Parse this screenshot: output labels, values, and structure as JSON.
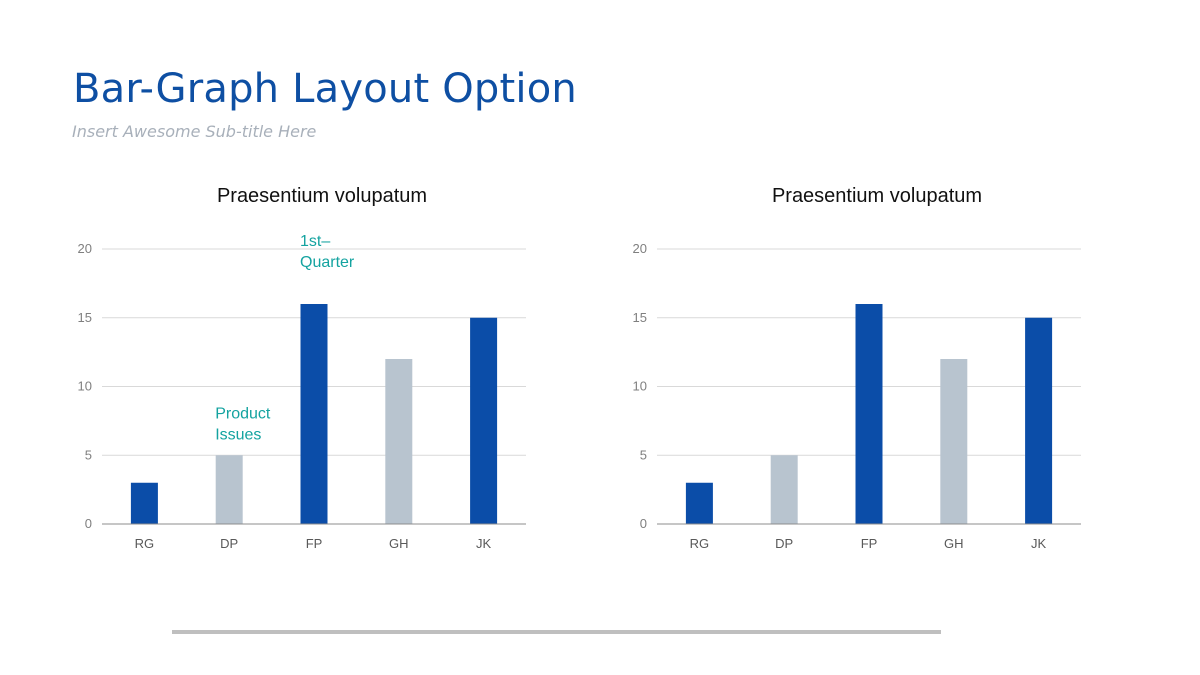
{
  "slide": {
    "title": "Bar-Graph Layout Option",
    "subtitle": "Insert Awesome Sub-title Here"
  },
  "colors": {
    "title": "#0E4FA3",
    "bar_primary": "#0B4DA8",
    "bar_secondary": "#B8C4CF",
    "annotation": "#14A3A0",
    "gridline": "#D9D9D9",
    "axis": "#8C8C8C"
  },
  "chart_data": [
    {
      "type": "bar",
      "title": "Praesentium volupatum",
      "categories": [
        "RG",
        "DP",
        "FP",
        "GH",
        "JK"
      ],
      "values": [
        3,
        5,
        16,
        12,
        15
      ],
      "bar_colors": [
        "#0B4DA8",
        "#B8C4CF",
        "#0B4DA8",
        "#B8C4CF",
        "#0B4DA8"
      ],
      "ylim": [
        0,
        20
      ],
      "yticks": [
        0,
        5,
        10,
        15,
        20
      ],
      "grid": true,
      "annotations": [
        {
          "category": "DP",
          "lines": [
            "Product",
            "Issues"
          ]
        },
        {
          "category": "FP",
          "lines": [
            "1st–",
            "Quarter"
          ]
        }
      ]
    },
    {
      "type": "bar",
      "title": "Praesentium volupatum",
      "categories": [
        "RG",
        "DP",
        "FP",
        "GH",
        "JK"
      ],
      "values": [
        3,
        5,
        16,
        12,
        15
      ],
      "bar_colors": [
        "#0B4DA8",
        "#B8C4CF",
        "#0B4DA8",
        "#B8C4CF",
        "#0B4DA8"
      ],
      "ylim": [
        0,
        20
      ],
      "yticks": [
        0,
        5,
        10,
        15,
        20
      ],
      "grid": true,
      "annotations": []
    }
  ]
}
